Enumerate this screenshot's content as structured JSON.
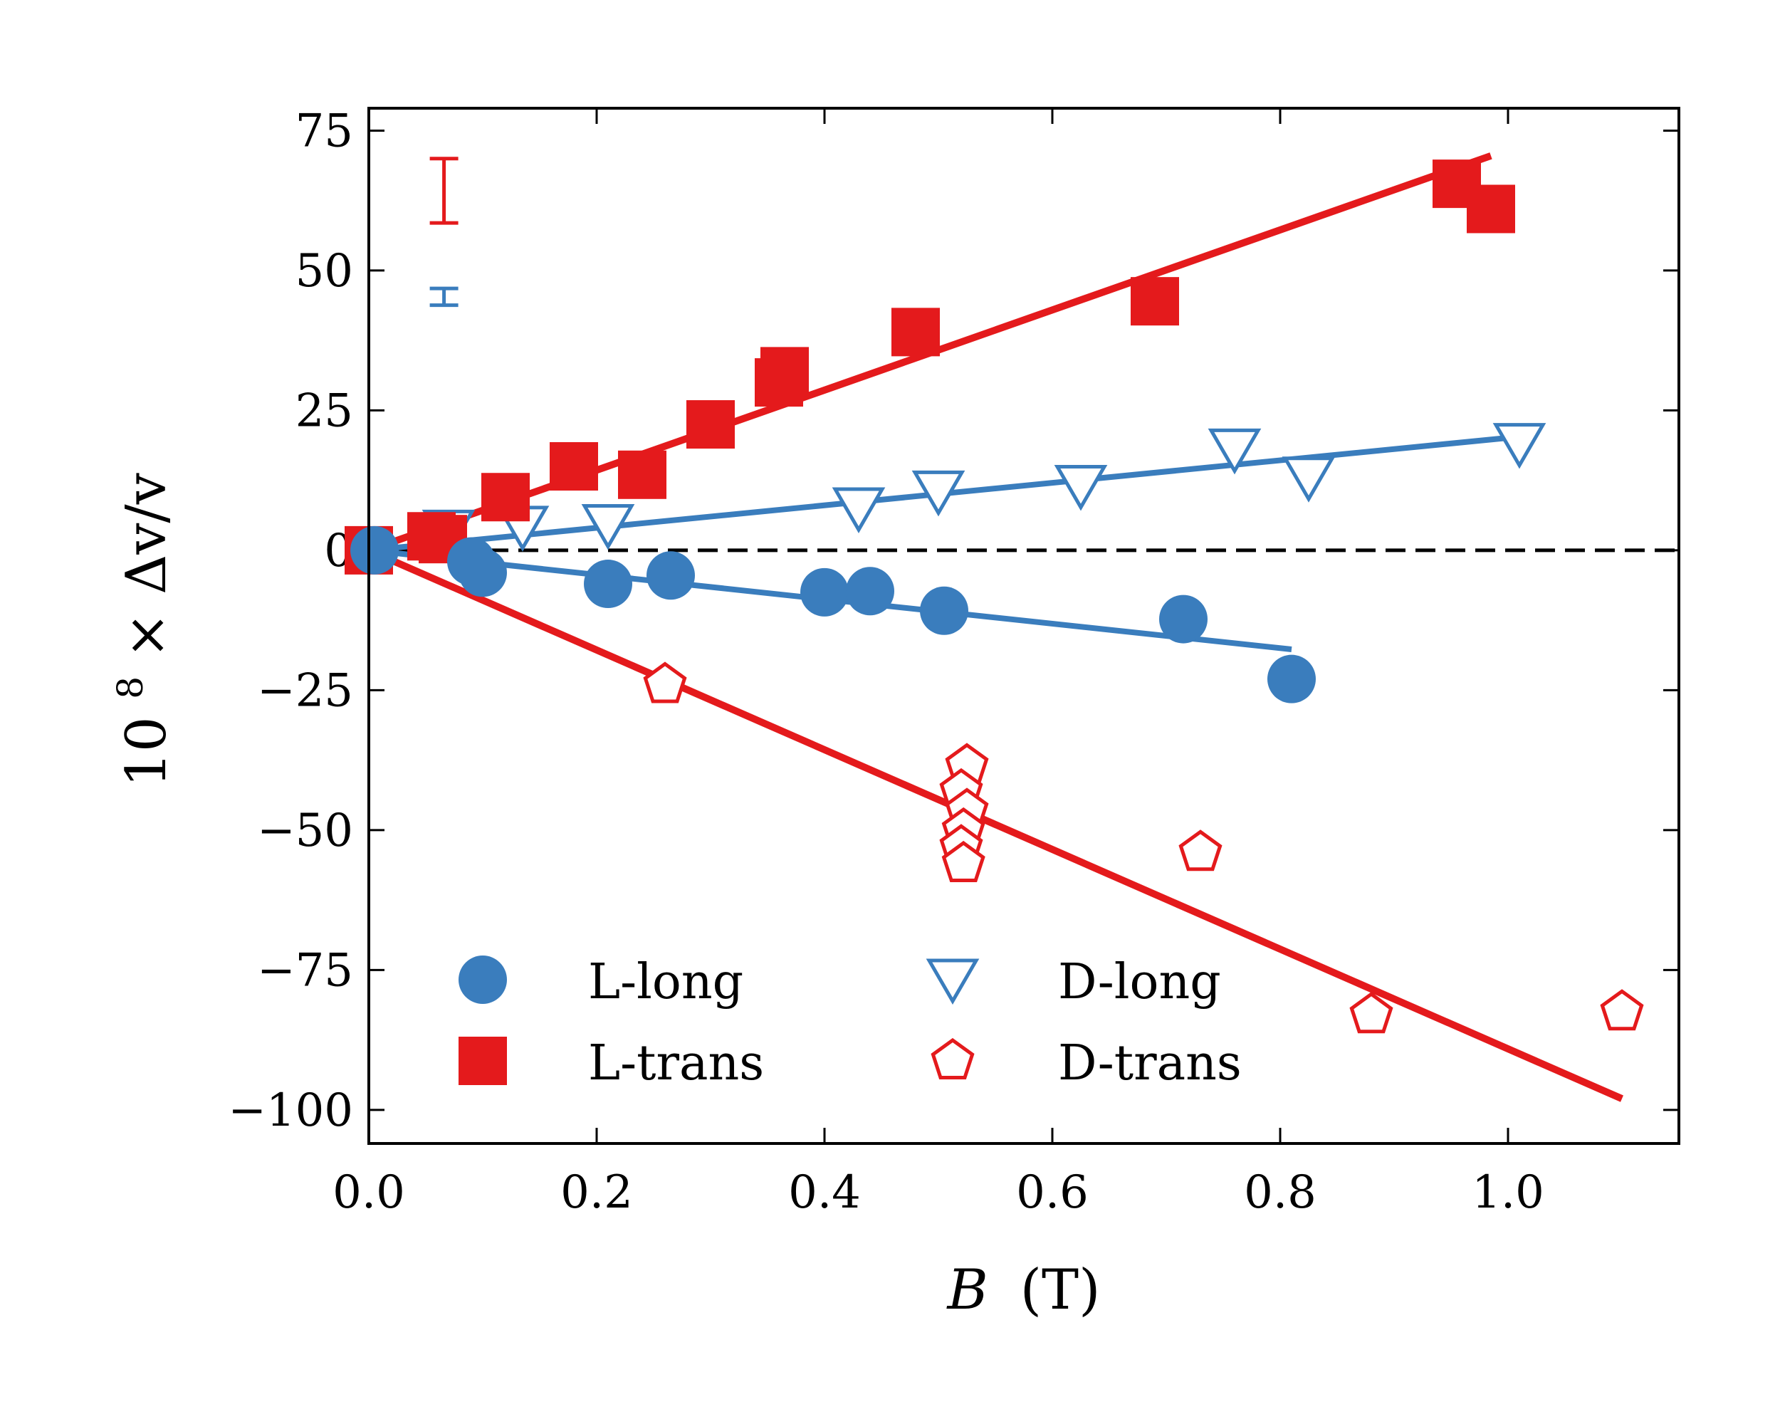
{
  "chart_data": {
    "type": "scatter",
    "xlabel_var": "B",
    "xlabel_unit": "(T)",
    "ylabel_prefix": "10",
    "ylabel_exp": "8",
    "ylabel_rest": " × Δv/v",
    "xlim": [
      0,
      1.15
    ],
    "ylim": [
      -106,
      79
    ],
    "x_ticks": [
      0.0,
      0.2,
      0.4,
      0.6,
      0.8,
      1.0
    ],
    "x_tick_labels": [
      "0.0",
      "0.2",
      "0.4",
      "0.6",
      "0.8",
      "1.0"
    ],
    "y_ticks": [
      75,
      50,
      25,
      0,
      -25,
      -50,
      -75,
      -100
    ],
    "y_tick_labels": [
      "75",
      "50",
      "25",
      "0",
      "−25",
      "−50",
      "−75",
      "−100"
    ],
    "zero_line": "dashed",
    "legend_position": "lower-left",
    "series": [
      {
        "name": "L-long",
        "marker": "circle",
        "filled": true,
        "color": "#3a7dbd",
        "points": [
          [
            0.005,
            0
          ],
          [
            0.09,
            -2
          ],
          [
            0.1,
            -4
          ],
          [
            0.21,
            -6
          ],
          [
            0.265,
            -4.5
          ],
          [
            0.4,
            -7.5
          ],
          [
            0.44,
            -7.3
          ],
          [
            0.505,
            -10.8
          ],
          [
            0.715,
            -12.3
          ],
          [
            0.81,
            -23
          ]
        ],
        "fit": [
          [
            0.0,
            0
          ],
          [
            0.81,
            -17.7
          ]
        ]
      },
      {
        "name": "L-trans",
        "marker": "square",
        "filled": true,
        "color": "#e41a1c",
        "points": [
          [
            0.0,
            0
          ],
          [
            0.055,
            2.5
          ],
          [
            0.065,
            2
          ],
          [
            0.12,
            9.5
          ],
          [
            0.18,
            15
          ],
          [
            0.24,
            13.5
          ],
          [
            0.3,
            22.5
          ],
          [
            0.36,
            30
          ],
          [
            0.365,
            32
          ],
          [
            0.48,
            39
          ],
          [
            0.69,
            44.5
          ],
          [
            0.955,
            65.5
          ],
          [
            0.985,
            61
          ]
        ],
        "fit": [
          [
            0.0,
            0
          ],
          [
            0.985,
            70.5
          ]
        ]
      },
      {
        "name": "D-long",
        "marker": "triangle-down",
        "filled": false,
        "color": "#3a7dbd",
        "points": [
          [
            0.07,
            3.5
          ],
          [
            0.135,
            4.2
          ],
          [
            0.21,
            4.5
          ],
          [
            0.43,
            7.5
          ],
          [
            0.5,
            10.5
          ],
          [
            0.625,
            11.5
          ],
          [
            0.76,
            18
          ],
          [
            0.825,
            13
          ],
          [
            1.01,
            19
          ]
        ],
        "fit": [
          [
            0.0,
            0
          ],
          [
            1.01,
            20.3
          ]
        ]
      },
      {
        "name": "D-trans",
        "marker": "pentagon",
        "filled": false,
        "color": "#e41a1c",
        "points": [
          [
            0.26,
            -24
          ],
          [
            0.525,
            -38.5
          ],
          [
            0.52,
            -43
          ],
          [
            0.525,
            -46.5
          ],
          [
            0.522,
            -50
          ],
          [
            0.52,
            -53
          ],
          [
            0.522,
            -56
          ],
          [
            0.73,
            -54
          ],
          [
            0.88,
            -83
          ],
          [
            1.1,
            -82.5
          ]
        ],
        "fit": [
          [
            0.0,
            0
          ],
          [
            1.1,
            -98
          ]
        ]
      }
    ],
    "error_bars": [
      {
        "color": "#e41a1c",
        "x": 0.066,
        "y_low": 58.5,
        "y_high": 70
      },
      {
        "color": "#3a7dbd",
        "x": 0.066,
        "y_low": 43.8,
        "y_high": 46.8
      }
    ]
  }
}
